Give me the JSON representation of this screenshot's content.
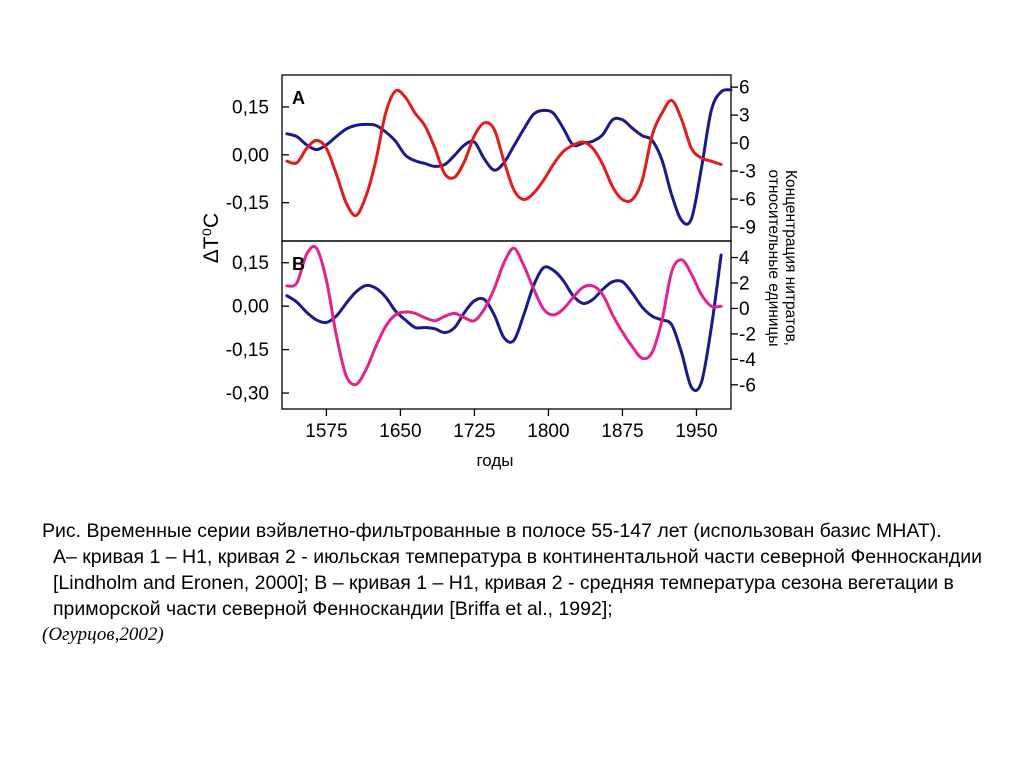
{
  "chart_data": {
    "type": "line",
    "x_label": "годы",
    "x_ticks": [
      1575,
      1650,
      1725,
      1800,
      1875,
      1950
    ],
    "xlim": [
      1530,
      1985
    ],
    "left_axis_label": "ΔT⁰C",
    "right_axis_label": "Концентрация нитратов, относительные единицы",
    "panels": [
      {
        "letter": "A",
        "left_ylim": [
          -0.27,
          0.25
        ],
        "left_ticks": [
          0.15,
          0.0,
          -0.15
        ],
        "left_tick_labels": [
          "0,15",
          "0,00",
          "-0,15"
        ],
        "right_ylim": [
          -10.5,
          7.3
        ],
        "right_ticks": [
          6,
          3,
          0,
          -3,
          -6,
          -9
        ],
        "right_tick_labels": [
          "6",
          "3",
          "0",
          "-3",
          "-6",
          "-9"
        ],
        "series": [
          {
            "curve": "1",
            "axis": "right",
            "color": "#1a1a8c",
            "x": [
              1535,
              1545,
              1555,
              1565,
              1575,
              1585,
              1595,
              1605,
              1615,
              1625,
              1635,
              1645,
              1655,
              1665,
              1675,
              1685,
              1695,
              1705,
              1715,
              1725,
              1735,
              1745,
              1755,
              1765,
              1775,
              1785,
              1795,
              1805,
              1815,
              1825,
              1835,
              1845,
              1855,
              1865,
              1875,
              1885,
              1895,
              1905,
              1915,
              1925,
              1935,
              1945,
              1955,
              1965,
              1975,
              1985
            ],
            "y": [
              1,
              0.7,
              -0.2,
              -0.7,
              -0.2,
              0.7,
              1.5,
              1.9,
              2,
              1.9,
              1.2,
              0.2,
              -1.3,
              -1.9,
              -2.2,
              -2.5,
              -2.3,
              -1.3,
              -0.2,
              0.1,
              -1.7,
              -2.9,
              -2.1,
              -0.3,
              1.5,
              3.1,
              3.5,
              3.2,
              1.6,
              -0.2,
              0,
              0.2,
              0.9,
              2.5,
              2.5,
              1.6,
              0.8,
              0.3,
              -1.8,
              -5.6,
              -8.3,
              -8.1,
              -2.7,
              3.5,
              5.5,
              5.7
            ]
          },
          {
            "curve": "2",
            "axis": "left",
            "color": "#e21c1c",
            "x": [
              1535,
              1545,
              1555,
              1565,
              1575,
              1585,
              1595,
              1605,
              1615,
              1625,
              1635,
              1645,
              1655,
              1665,
              1675,
              1685,
              1695,
              1705,
              1715,
              1725,
              1735,
              1745,
              1755,
              1765,
              1775,
              1785,
              1795,
              1805,
              1815,
              1825,
              1835,
              1845,
              1855,
              1865,
              1875,
              1885,
              1895,
              1905,
              1915,
              1925,
              1935,
              1945,
              1955,
              1965,
              1975
            ],
            "y": [
              -0.02,
              -0.025,
              0.02,
              0.045,
              0.02,
              -0.06,
              -0.15,
              -0.19,
              -0.13,
              -0.02,
              0.13,
              0.2,
              0.18,
              0.13,
              0.09,
              0.02,
              -0.06,
              -0.07,
              -0.02,
              0.06,
              0.1,
              0.08,
              -0.02,
              -0.11,
              -0.14,
              -0.12,
              -0.08,
              -0.03,
              0.01,
              0.03,
              0.04,
              0.02,
              -0.03,
              -0.1,
              -0.14,
              -0.14,
              -0.08,
              0.06,
              0.13,
              0.17,
              0.11,
              0.02,
              -0.01,
              -0.02,
              -0.03
            ]
          }
        ]
      },
      {
        "letter": "B",
        "left_ylim": [
          -0.355,
          0.225
        ],
        "left_ticks": [
          0.15,
          0.0,
          -0.15,
          -0.3
        ],
        "left_tick_labels": [
          "0,15",
          "0,00",
          "-0,15",
          "-0,30"
        ],
        "right_ylim": [
          -7.9,
          5.3
        ],
        "right_ticks": [
          4,
          2,
          0,
          -2,
          -4,
          -6
        ],
        "right_tick_labels": [
          "4",
          "2",
          "0",
          "-2",
          "-4",
          "-6"
        ],
        "series": [
          {
            "curve": "1",
            "axis": "right",
            "color": "#1a1a8c",
            "x": [
              1535,
              1545,
              1555,
              1565,
              1575,
              1585,
              1595,
              1605,
              1615,
              1625,
              1635,
              1645,
              1655,
              1665,
              1675,
              1685,
              1695,
              1705,
              1715,
              1725,
              1735,
              1745,
              1755,
              1765,
              1775,
              1785,
              1795,
              1805,
              1815,
              1825,
              1835,
              1845,
              1855,
              1865,
              1875,
              1885,
              1895,
              1905,
              1915,
              1925,
              1935,
              1945,
              1955,
              1965,
              1975
            ],
            "y": [
              1,
              0.5,
              -0.3,
              -0.9,
              -1.1,
              -0.6,
              0.4,
              1.3,
              1.8,
              1.6,
              0.9,
              -0.2,
              -0.9,
              -1.5,
              -1.5,
              -1.6,
              -1.9,
              -1.5,
              -0.3,
              0.6,
              0.7,
              -0.5,
              -2.3,
              -2.5,
              -0.5,
              1.8,
              3.2,
              3,
              2.2,
              1,
              0.4,
              0.7,
              1.5,
              2.1,
              2.1,
              1.2,
              0.1,
              -0.6,
              -0.9,
              -1.3,
              -3.5,
              -6.2,
              -5.8,
              -1.5,
              4.2
            ]
          },
          {
            "curve": "2",
            "axis": "left",
            "color": "#e0248c",
            "x": [
              1535,
              1545,
              1555,
              1565,
              1575,
              1585,
              1595,
              1605,
              1615,
              1625,
              1635,
              1645,
              1655,
              1665,
              1675,
              1685,
              1695,
              1705,
              1715,
              1725,
              1735,
              1745,
              1755,
              1765,
              1775,
              1785,
              1795,
              1805,
              1815,
              1825,
              1835,
              1845,
              1855,
              1865,
              1875,
              1885,
              1895,
              1905,
              1915,
              1925,
              1935,
              1945,
              1955,
              1965,
              1975
            ],
            "y": [
              0.07,
              0.08,
              0.18,
              0.2,
              0.09,
              -0.1,
              -0.24,
              -0.27,
              -0.22,
              -0.14,
              -0.07,
              -0.03,
              -0.02,
              -0.025,
              -0.04,
              -0.05,
              -0.035,
              -0.025,
              -0.04,
              -0.05,
              -0.01,
              0.06,
              0.15,
              0.2,
              0.14,
              0.06,
              -0.01,
              -0.03,
              -0.01,
              0.03,
              0.065,
              0.07,
              0.04,
              -0.03,
              -0.09,
              -0.14,
              -0.18,
              -0.16,
              -0.05,
              0.12,
              0.16,
              0.11,
              0.04,
              0,
              0
            ]
          }
        ]
      }
    ]
  },
  "caption": {
    "line1": "Рис. Временные серии вэйвлетно-фильтрованные в полосе 55-147 лет (использован базис МНАТ).",
    "line2": "А– кривая 1 – Н1, кривая 2 - июльская температура в континентальной части северной Фенноскандии [Lindholm and Eronen, 2000]; В – кривая 1 – Н1, кривая 2 -  средняя температура сезона вегетации в приморской части северной Фенноскандии [Briffa et al., 1992];",
    "source": "(Огурцов,2002)"
  }
}
